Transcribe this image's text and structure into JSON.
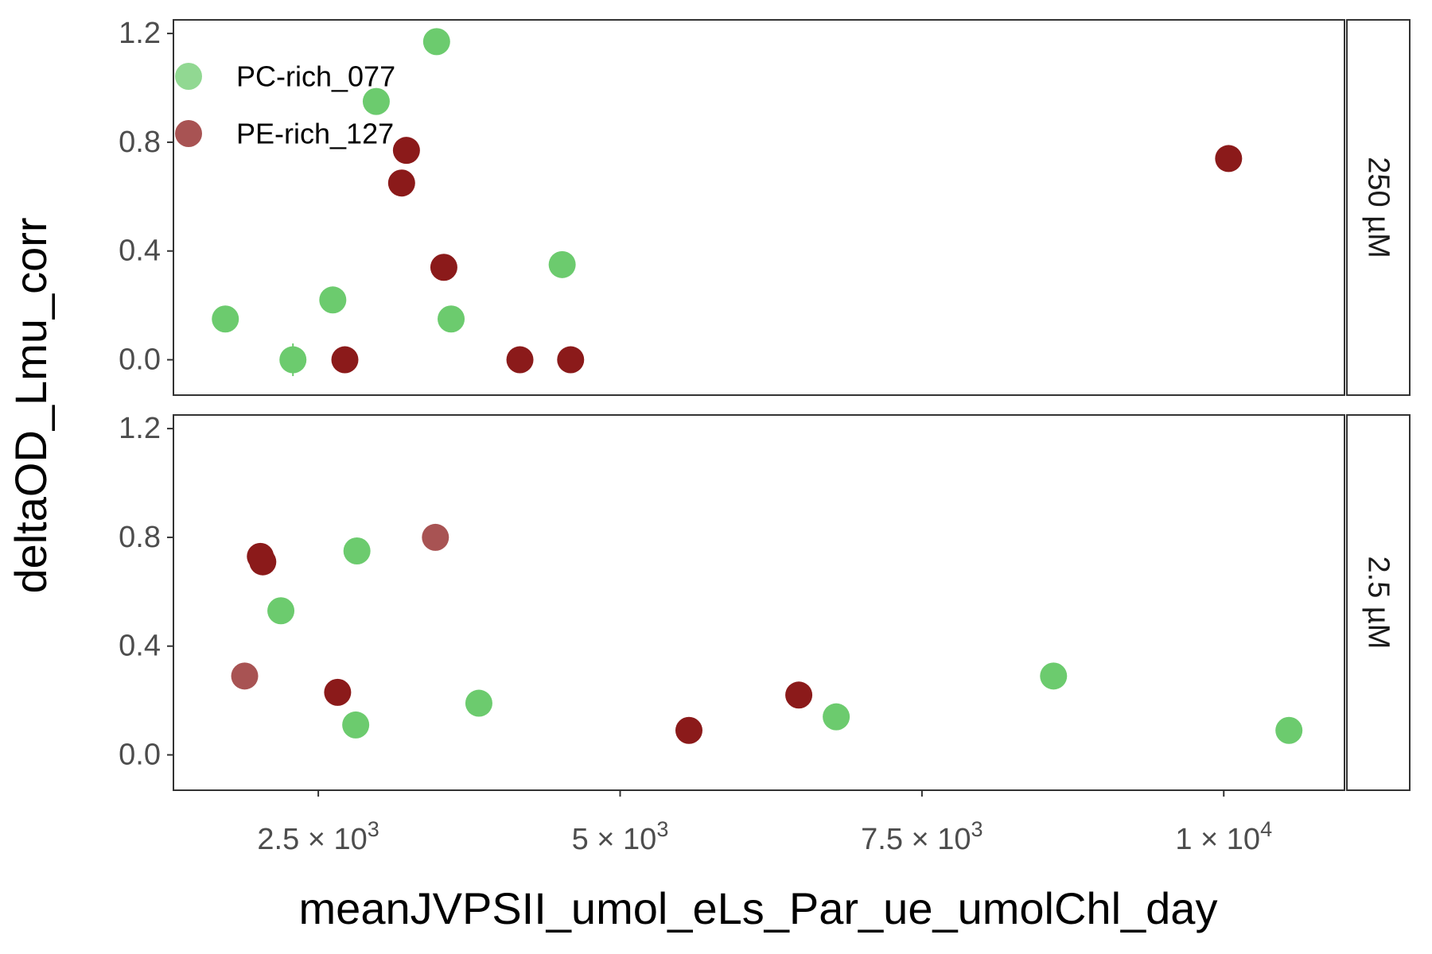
{
  "chart_data": {
    "type": "scatter",
    "xlabel": "meanJVPSII_umol_eLs_Par_ue_umolChl_day",
    "ylabel": "deltaOD_Lmu_corr",
    "xlim": [
      1300,
      11000
    ],
    "ylim": [
      -0.13,
      1.25
    ],
    "x_ticks": [
      {
        "value": 2500,
        "mantissa": "2.5",
        "exp": "3"
      },
      {
        "value": 5000,
        "mantissa": "5",
        "exp": "3"
      },
      {
        "value": 7500,
        "mantissa": "7.5",
        "exp": "3"
      },
      {
        "value": 10000,
        "mantissa": "1",
        "exp": "4"
      }
    ],
    "y_ticks": [
      {
        "value": 0.0,
        "label": "0.0"
      },
      {
        "value": 0.4,
        "label": "0.4"
      },
      {
        "value": 0.8,
        "label": "0.8"
      },
      {
        "value": 1.2,
        "label": "1.2"
      }
    ],
    "grid": false,
    "legend_position": "top-left",
    "series": [
      {
        "name": "PC-rich_077",
        "color": "#6ccb6e"
      },
      {
        "name": "PE-rich_127",
        "color": "#8b1a1a"
      }
    ],
    "panels": [
      {
        "strip": "250 µM",
        "points": [
          {
            "series": 0,
            "x": 1730,
            "y": 0.15
          },
          {
            "series": 0,
            "x": 2290,
            "y": 0.0,
            "err": 0.06
          },
          {
            "series": 0,
            "x": 2620,
            "y": 0.22
          },
          {
            "series": 0,
            "x": 2980,
            "y": 0.95
          },
          {
            "series": 0,
            "x": 3480,
            "y": 1.17
          },
          {
            "series": 0,
            "x": 3600,
            "y": 0.15
          },
          {
            "series": 0,
            "x": 4520,
            "y": 0.35
          },
          {
            "series": 1,
            "x": 2720,
            "y": 0.0
          },
          {
            "series": 1,
            "x": 3190,
            "y": 0.65
          },
          {
            "series": 1,
            "x": 3230,
            "y": 0.77
          },
          {
            "series": 1,
            "x": 3540,
            "y": 0.34
          },
          {
            "series": 1,
            "x": 4170,
            "y": 0.0
          },
          {
            "series": 1,
            "x": 4590,
            "y": 0.0
          },
          {
            "series": 1,
            "x": 10040,
            "y": 0.74
          }
        ]
      },
      {
        "strip": "2.5 µM",
        "points": [
          {
            "series": 0,
            "x": 2190,
            "y": 0.53
          },
          {
            "series": 0,
            "x": 2810,
            "y": 0.11
          },
          {
            "series": 0,
            "x": 2820,
            "y": 0.75
          },
          {
            "series": 0,
            "x": 3830,
            "y": 0.19
          },
          {
            "series": 0,
            "x": 6790,
            "y": 0.14
          },
          {
            "series": 0,
            "x": 8590,
            "y": 0.29
          },
          {
            "series": 0,
            "x": 10540,
            "y": 0.09
          },
          {
            "series": 1,
            "x": 1890,
            "y": 0.29,
            "alpha": 0.75
          },
          {
            "series": 1,
            "x": 2020,
            "y": 0.73
          },
          {
            "series": 1,
            "x": 2040,
            "y": 0.71
          },
          {
            "series": 1,
            "x": 2660,
            "y": 0.23
          },
          {
            "series": 1,
            "x": 3470,
            "y": 0.8,
            "alpha": 0.75
          },
          {
            "series": 1,
            "x": 5570,
            "y": 0.09
          },
          {
            "series": 1,
            "x": 6480,
            "y": 0.22
          }
        ]
      }
    ]
  }
}
